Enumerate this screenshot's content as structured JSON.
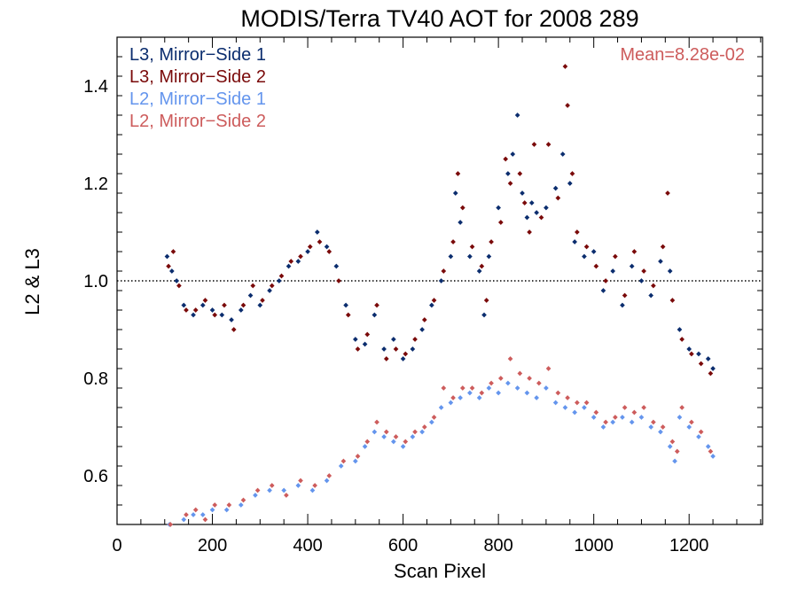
{
  "chart_data": {
    "type": "scatter",
    "title": "MODIS/Terra TV40 AOT for 2008 289",
    "xlabel": "Scan Pixel",
    "ylabel": "L2 & L3",
    "xlim": [
      0,
      1354
    ],
    "ylim": [
      0.5,
      1.5
    ],
    "x_ticks": [
      "0",
      "200",
      "400",
      "600",
      "800",
      "1000",
      "1200"
    ],
    "x_tick_values": [
      0,
      200,
      400,
      600,
      800,
      1000,
      1200
    ],
    "y_ticks": [
      "0.6",
      "0.8",
      "1.0",
      "1.2",
      "1.4"
    ],
    "y_tick_values": [
      0.6,
      0.8,
      1.0,
      1.2,
      1.4
    ],
    "reference_line": 1.0,
    "annotation": "Mean=8.28e-02",
    "annotation_color": "#cd5c5c",
    "legend_placement": "top-left",
    "series": [
      {
        "name": "L3, Mirror−Side 1",
        "color": "#0b2d6e",
        "points": [
          [
            105,
            1.05
          ],
          [
            115,
            1.02
          ],
          [
            125,
            1.0
          ],
          [
            140,
            0.95
          ],
          [
            160,
            0.93
          ],
          [
            180,
            0.95
          ],
          [
            200,
            0.94
          ],
          [
            220,
            0.93
          ],
          [
            240,
            0.92
          ],
          [
            260,
            0.94
          ],
          [
            280,
            0.97
          ],
          [
            300,
            0.95
          ],
          [
            320,
            0.98
          ],
          [
            340,
            1.0
          ],
          [
            360,
            1.03
          ],
          [
            380,
            1.04
          ],
          [
            400,
            1.06
          ],
          [
            420,
            1.1
          ],
          [
            440,
            1.07
          ],
          [
            460,
            1.03
          ],
          [
            480,
            0.95
          ],
          [
            500,
            0.88
          ],
          [
            520,
            0.87
          ],
          [
            540,
            0.93
          ],
          [
            560,
            0.86
          ],
          [
            580,
            0.88
          ],
          [
            600,
            0.84
          ],
          [
            620,
            0.86
          ],
          [
            640,
            0.9
          ],
          [
            660,
            0.95
          ],
          [
            680,
            1.0
          ],
          [
            700,
            1.05
          ],
          [
            710,
            1.18
          ],
          [
            720,
            1.12
          ],
          [
            740,
            1.05
          ],
          [
            760,
            1.02
          ],
          [
            770,
            0.93
          ],
          [
            780,
            1.05
          ],
          [
            800,
            1.15
          ],
          [
            820,
            1.22
          ],
          [
            830,
            1.26
          ],
          [
            840,
            1.34
          ],
          [
            850,
            1.18
          ],
          [
            860,
            1.13
          ],
          [
            870,
            1.16
          ],
          [
            880,
            1.14
          ],
          [
            900,
            1.15
          ],
          [
            920,
            1.19
          ],
          [
            935,
            1.26
          ],
          [
            950,
            1.2
          ],
          [
            960,
            1.08
          ],
          [
            980,
            1.05
          ],
          [
            1000,
            1.06
          ],
          [
            1020,
            0.98
          ],
          [
            1040,
            1.02
          ],
          [
            1060,
            0.95
          ],
          [
            1080,
            1.03
          ],
          [
            1100,
            1.0
          ],
          [
            1120,
            0.97
          ],
          [
            1140,
            1.04
          ],
          [
            1160,
            1.02
          ],
          [
            1180,
            0.9
          ],
          [
            1200,
            0.86
          ],
          [
            1220,
            0.85
          ],
          [
            1240,
            0.84
          ],
          [
            1250,
            0.82
          ]
        ]
      },
      {
        "name": "L3, Mirror−Side 2",
        "color": "#7a0a0a",
        "points": [
          [
            108,
            1.03
          ],
          [
            118,
            1.06
          ],
          [
            130,
            0.99
          ],
          [
            145,
            0.94
          ],
          [
            165,
            0.94
          ],
          [
            185,
            0.96
          ],
          [
            205,
            0.93
          ],
          [
            225,
            0.95
          ],
          [
            245,
            0.9
          ],
          [
            265,
            0.95
          ],
          [
            285,
            0.99
          ],
          [
            305,
            0.96
          ],
          [
            325,
            0.99
          ],
          [
            345,
            1.01
          ],
          [
            365,
            1.04
          ],
          [
            385,
            1.05
          ],
          [
            405,
            1.07
          ],
          [
            425,
            1.08
          ],
          [
            445,
            1.06
          ],
          [
            465,
            1.0
          ],
          [
            485,
            0.93
          ],
          [
            505,
            0.86
          ],
          [
            525,
            0.89
          ],
          [
            545,
            0.95
          ],
          [
            565,
            0.84
          ],
          [
            585,
            0.86
          ],
          [
            605,
            0.85
          ],
          [
            625,
            0.88
          ],
          [
            645,
            0.92
          ],
          [
            665,
            0.96
          ],
          [
            685,
            1.02
          ],
          [
            705,
            1.08
          ],
          [
            715,
            1.22
          ],
          [
            725,
            1.15
          ],
          [
            745,
            1.07
          ],
          [
            765,
            1.03
          ],
          [
            775,
            0.96
          ],
          [
            785,
            1.08
          ],
          [
            805,
            1.12
          ],
          [
            815,
            1.25
          ],
          [
            825,
            1.2
          ],
          [
            845,
            1.22
          ],
          [
            855,
            1.16
          ],
          [
            865,
            1.1
          ],
          [
            875,
            1.28
          ],
          [
            890,
            1.13
          ],
          [
            905,
            1.28
          ],
          [
            925,
            1.17
          ],
          [
            940,
            1.44
          ],
          [
            945,
            1.36
          ],
          [
            955,
            1.22
          ],
          [
            965,
            1.1
          ],
          [
            985,
            1.07
          ],
          [
            1005,
            1.03
          ],
          [
            1025,
            1.0
          ],
          [
            1045,
            1.05
          ],
          [
            1065,
            0.97
          ],
          [
            1085,
            1.06
          ],
          [
            1105,
            1.02
          ],
          [
            1125,
            0.99
          ],
          [
            1145,
            1.07
          ],
          [
            1155,
            1.18
          ],
          [
            1165,
            0.96
          ],
          [
            1185,
            0.88
          ],
          [
            1205,
            0.85
          ],
          [
            1225,
            0.83
          ],
          [
            1245,
            0.81
          ]
        ]
      },
      {
        "name": "L2, Mirror−Side 1",
        "color": "#6495ed",
        "points": [
          [
            110,
            0.5
          ],
          [
            140,
            0.51
          ],
          [
            160,
            0.52
          ],
          [
            180,
            0.52
          ],
          [
            200,
            0.53
          ],
          [
            230,
            0.53
          ],
          [
            260,
            0.54
          ],
          [
            290,
            0.56
          ],
          [
            320,
            0.57
          ],
          [
            350,
            0.57
          ],
          [
            380,
            0.58
          ],
          [
            410,
            0.57
          ],
          [
            440,
            0.59
          ],
          [
            470,
            0.62
          ],
          [
            500,
            0.63
          ],
          [
            520,
            0.66
          ],
          [
            540,
            0.69
          ],
          [
            560,
            0.68
          ],
          [
            580,
            0.67
          ],
          [
            600,
            0.66
          ],
          [
            620,
            0.68
          ],
          [
            640,
            0.69
          ],
          [
            660,
            0.71
          ],
          [
            680,
            0.74
          ],
          [
            700,
            0.75
          ],
          [
            720,
            0.76
          ],
          [
            740,
            0.77
          ],
          [
            760,
            0.76
          ],
          [
            780,
            0.78
          ],
          [
            800,
            0.77
          ],
          [
            820,
            0.79
          ],
          [
            840,
            0.78
          ],
          [
            860,
            0.77
          ],
          [
            880,
            0.76
          ],
          [
            900,
            0.78
          ],
          [
            920,
            0.75
          ],
          [
            940,
            0.74
          ],
          [
            960,
            0.73
          ],
          [
            980,
            0.74
          ],
          [
            1000,
            0.72
          ],
          [
            1020,
            0.7
          ],
          [
            1040,
            0.71
          ],
          [
            1060,
            0.72
          ],
          [
            1080,
            0.71
          ],
          [
            1100,
            0.72
          ],
          [
            1120,
            0.7
          ],
          [
            1140,
            0.69
          ],
          [
            1160,
            0.66
          ],
          [
            1170,
            0.63
          ],
          [
            1180,
            0.72
          ],
          [
            1200,
            0.7
          ],
          [
            1220,
            0.68
          ],
          [
            1240,
            0.66
          ],
          [
            1250,
            0.64
          ]
        ]
      },
      {
        "name": "L2, Mirror−Side 2",
        "color": "#cd5c5c",
        "points": [
          [
            112,
            0.5
          ],
          [
            145,
            0.52
          ],
          [
            165,
            0.53
          ],
          [
            185,
            0.51
          ],
          [
            205,
            0.54
          ],
          [
            235,
            0.54
          ],
          [
            265,
            0.55
          ],
          [
            295,
            0.57
          ],
          [
            325,
            0.58
          ],
          [
            355,
            0.56
          ],
          [
            385,
            0.59
          ],
          [
            415,
            0.58
          ],
          [
            445,
            0.6
          ],
          [
            475,
            0.63
          ],
          [
            505,
            0.64
          ],
          [
            525,
            0.67
          ],
          [
            545,
            0.71
          ],
          [
            565,
            0.69
          ],
          [
            585,
            0.68
          ],
          [
            605,
            0.67
          ],
          [
            625,
            0.69
          ],
          [
            645,
            0.7
          ],
          [
            665,
            0.72
          ],
          [
            685,
            0.78
          ],
          [
            705,
            0.76
          ],
          [
            725,
            0.78
          ],
          [
            745,
            0.78
          ],
          [
            765,
            0.77
          ],
          [
            785,
            0.79
          ],
          [
            805,
            0.8
          ],
          [
            825,
            0.84
          ],
          [
            845,
            0.81
          ],
          [
            865,
            0.8
          ],
          [
            885,
            0.79
          ],
          [
            905,
            0.82
          ],
          [
            925,
            0.77
          ],
          [
            945,
            0.76
          ],
          [
            965,
            0.75
          ],
          [
            985,
            0.75
          ],
          [
            1005,
            0.73
          ],
          [
            1025,
            0.71
          ],
          [
            1045,
            0.72
          ],
          [
            1065,
            0.74
          ],
          [
            1085,
            0.73
          ],
          [
            1105,
            0.74
          ],
          [
            1125,
            0.71
          ],
          [
            1145,
            0.7
          ],
          [
            1165,
            0.67
          ],
          [
            1175,
            0.65
          ],
          [
            1185,
            0.74
          ],
          [
            1205,
            0.71
          ],
          [
            1225,
            0.69
          ],
          [
            1245,
            0.65
          ]
        ]
      }
    ]
  }
}
